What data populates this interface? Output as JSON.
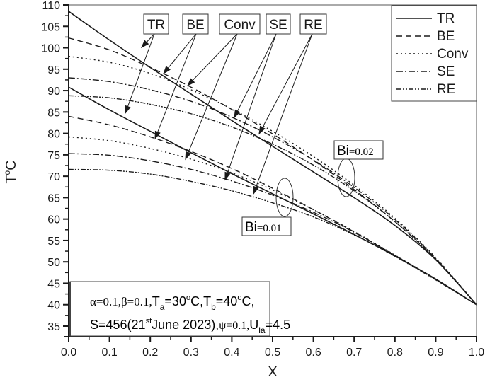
{
  "chart_data": {
    "type": "line",
    "title": "",
    "xlabel": "X",
    "ylabel": "T°C",
    "xlim": [
      0.0,
      1.0
    ],
    "ylim": [
      32.5,
      110
    ],
    "grid": false,
    "legend_position": "top-right",
    "x_ticks": [
      "0.0",
      "0.1",
      "0.2",
      "0.3",
      "0.4",
      "0.5",
      "0.6",
      "0.7",
      "0.8",
      "0.9",
      "1.0"
    ],
    "y_ticks": [
      "35",
      "40",
      "45",
      "50",
      "55",
      "60",
      "65",
      "70",
      "75",
      "80",
      "85",
      "90",
      "95",
      "100",
      "105",
      "110"
    ],
    "legend": [
      {
        "label": "TR",
        "style": "solid"
      },
      {
        "label": "BE",
        "style": "dash"
      },
      {
        "label": "Conv",
        "style": "dot"
      },
      {
        "label": "SE",
        "style": "dashdot"
      },
      {
        "label": "RE",
        "style": "dashdotdot"
      }
    ],
    "x": [
      0.0,
      0.1,
      0.2,
      0.3,
      0.4,
      0.5,
      0.6,
      0.7,
      0.8,
      0.9,
      1.0
    ],
    "series": [
      {
        "name": "TR (Bi=0.02)",
        "style": "solid",
        "values": [
          108.5,
          101.8,
          95.4,
          89.2,
          83.0,
          77.0,
          71.0,
          65.0,
          58.5,
          50.5,
          40
        ]
      },
      {
        "name": "BE (Bi=0.02)",
        "style": "dash",
        "values": [
          102.3,
          99.5,
          95.4,
          90.8,
          85.6,
          79.9,
          73.7,
          66.9,
          59.4,
          50.6,
          40
        ]
      },
      {
        "name": "Conv (Bi=0.02)",
        "style": "dot",
        "values": [
          98.0,
          96.6,
          94.0,
          90.2,
          85.7,
          80.5,
          74.6,
          67.9,
          60.2,
          51.0,
          40
        ]
      },
      {
        "name": "SE (Bi=0.02)",
        "style": "dashdot",
        "values": [
          93.0,
          92.1,
          90.2,
          87.5,
          83.8,
          79.2,
          73.8,
          67.4,
          59.9,
          50.8,
          40
        ]
      },
      {
        "name": "RE (Bi=0.02)",
        "style": "dashdotdot",
        "values": [
          88.8,
          88.3,
          86.8,
          84.6,
          81.5,
          77.5,
          72.6,
          66.6,
          59.4,
          50.6,
          40
        ]
      },
      {
        "name": "TR (Bi=0.01)",
        "style": "solid",
        "values": [
          90.8,
          85.5,
          80.5,
          75.5,
          70.6,
          65.9,
          61.2,
          56.4,
          51.4,
          46.0,
          40
        ]
      },
      {
        "name": "BE (Bi=0.01)",
        "style": "dash",
        "values": [
          84.0,
          82.0,
          79.2,
          75.8,
          71.8,
          67.2,
          62.2,
          57.0,
          51.5,
          45.9,
          40
        ]
      },
      {
        "name": "Conv (Bi=0.01)",
        "style": "dot",
        "values": [
          79.2,
          78.3,
          76.5,
          74.0,
          70.8,
          66.8,
          62.2,
          57.1,
          51.6,
          45.9,
          40
        ]
      },
      {
        "name": "SE (Bi=0.01)",
        "style": "dashdot",
        "values": [
          75.3,
          74.9,
          73.6,
          71.6,
          68.9,
          65.6,
          61.6,
          56.9,
          51.5,
          45.9,
          40
        ]
      },
      {
        "name": "RE (Bi=0.01)",
        "style": "dashdotdot",
        "values": [
          71.6,
          71.4,
          70.5,
          68.8,
          66.6,
          63.8,
          60.5,
          56.3,
          51.3,
          45.8,
          40
        ]
      }
    ],
    "annotations": {
      "callout_labels": [
        "TR",
        "BE",
        "Conv",
        "SE",
        "RE"
      ],
      "bi_upper": {
        "prefix": "Bi",
        "value": "=0.02"
      },
      "bi_lower": {
        "prefix": "Bi",
        "value": "=0.01"
      },
      "params_line1": "α=0.1,β=0.1,Ta=30°C,Tb=40°C,",
      "params_line2": "S=456(21st June 2023),ψ=0.1,Ula=4.5"
    }
  },
  "labels": {
    "xlabel": "X",
    "ylabel_T": "T",
    "ylabel_o": "o",
    "ylabel_C": "C",
    "callouts": [
      "TR",
      "BE",
      "Conv",
      "SE",
      "RE"
    ],
    "bi_upper_prefix": "Bi",
    "bi_upper_value": "=0.02",
    "bi_lower_prefix": "Bi",
    "bi_lower_value": "=0.01",
    "params": {
      "alpha": "α=0.1,β=0.1,",
      "ta": "T",
      "ta_sub": "a",
      "ta_val": "=30",
      "deg1": "o",
      "c1": "C,",
      "tb": "T",
      "tb_sub": "b",
      "tb_val": "=40",
      "deg2": "o",
      "c2": "C,",
      "s": "S=456(21",
      "st": "st",
      "june": "June 2023),",
      "psi": "ψ=0.1,",
      "u": "U",
      "u_sub": "la",
      "u_val": "=4.5"
    }
  }
}
